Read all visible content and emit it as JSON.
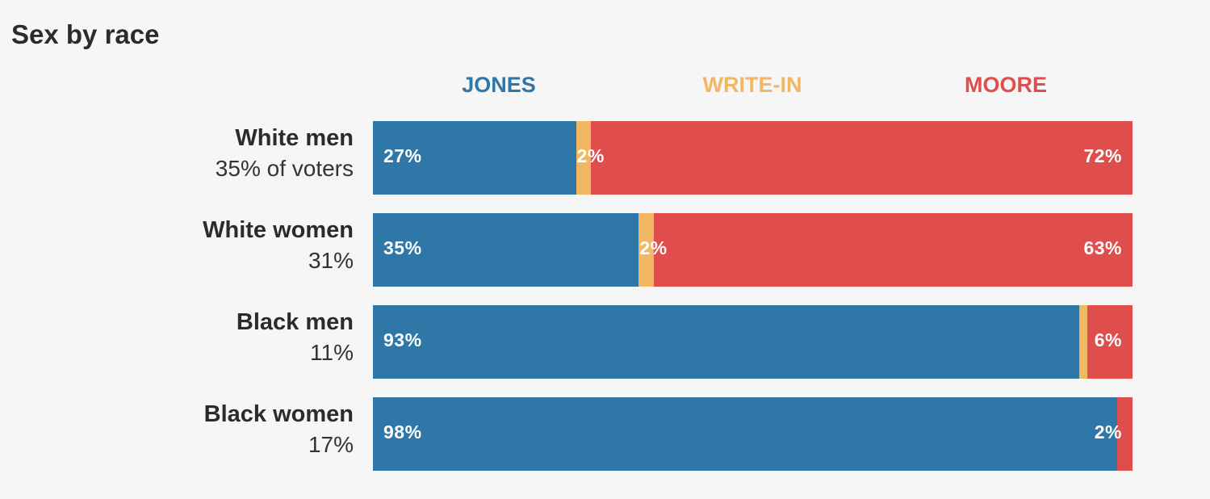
{
  "chart_data": {
    "type": "bar",
    "orientation": "horizontal",
    "stacked": true,
    "normalized_100": true,
    "title": "Sex by race",
    "categories": [
      "White men",
      "White women",
      "Black men",
      "Black women"
    ],
    "category_shares": [
      "35% of voters",
      "31%",
      "11%",
      "17%"
    ],
    "series": [
      {
        "name": "JONES",
        "color": "#2e77a6",
        "values": [
          27,
          35,
          93,
          98
        ]
      },
      {
        "name": "WRITE-IN",
        "color": "#f2b765",
        "values": [
          2,
          2,
          1,
          0
        ]
      },
      {
        "name": "MOORE",
        "color": "#e04d4d",
        "values": [
          72,
          63,
          6,
          2
        ]
      }
    ],
    "value_labels": [
      {
        "JONES": "27%",
        "WRITE-IN": "2%",
        "MOORE": "72%"
      },
      {
        "JONES": "35%",
        "WRITE-IN": "2%",
        "MOORE": "63%"
      },
      {
        "JONES": "93%",
        "WRITE-IN": "",
        "MOORE": "6%"
      },
      {
        "JONES": "98%",
        "WRITE-IN": "",
        "MOORE": "2%"
      }
    ],
    "legend_position": "top",
    "grid": false
  }
}
